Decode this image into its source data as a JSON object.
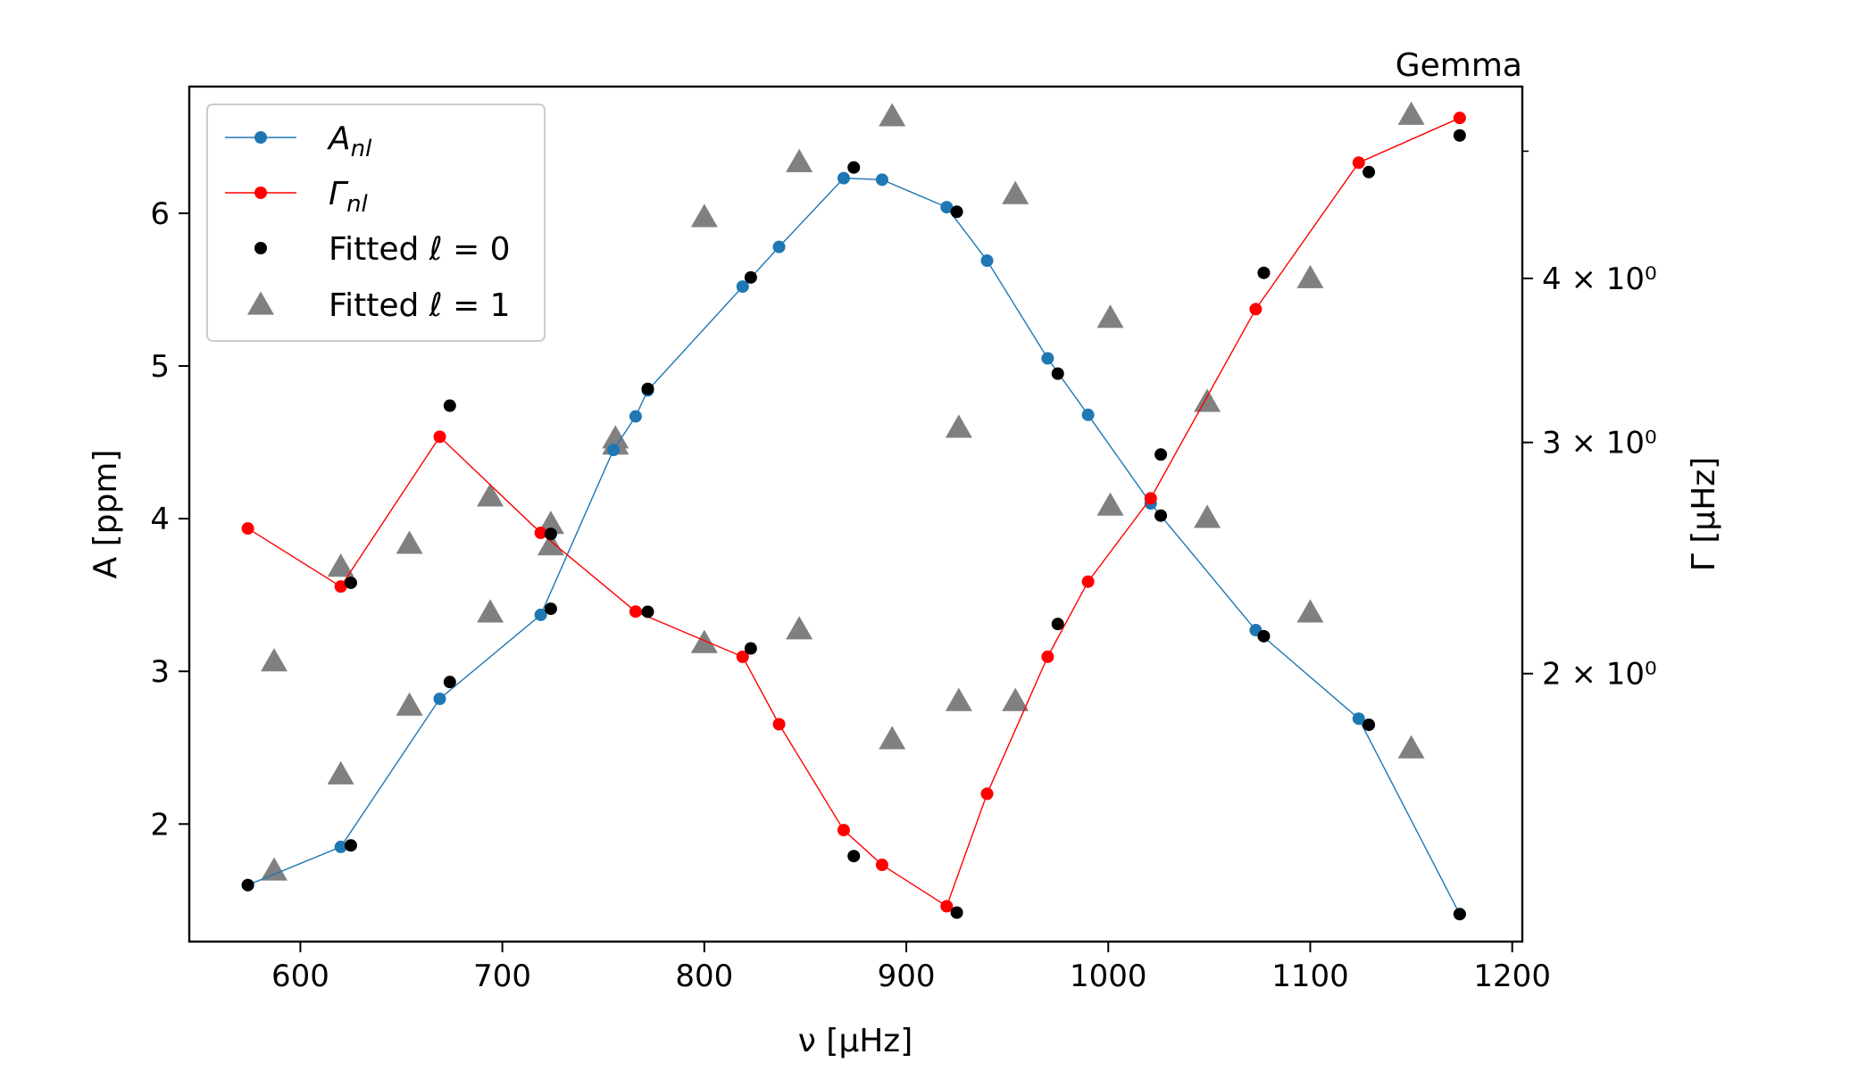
{
  "chart_data": {
    "type": "line",
    "title_right": "Gemma",
    "xlabel": "ν [μHz]",
    "ylabel_left": "A [ppm]",
    "ylabel_right": "Γ [μHz]",
    "xlim": [
      545,
      1205
    ],
    "ylim_left": [
      1.23,
      6.83
    ],
    "ylim_right_log": [
      1.25,
      5.6
    ],
    "right_axis_scale": "log",
    "x_ticks": [
      600,
      700,
      800,
      900,
      1000,
      1100,
      1200
    ],
    "x_tick_labels": [
      "600",
      "700",
      "800",
      "900",
      "1000",
      "1100",
      "1200"
    ],
    "y_left_ticks": [
      2,
      3,
      4,
      5,
      6
    ],
    "y_left_tick_labels": [
      "2",
      "3",
      "4",
      "5",
      "6"
    ],
    "y_right_ticks": [
      2,
      3,
      4
    ],
    "y_right_tick_labels": [
      "2 × 10⁰",
      "3 × 10⁰",
      "4 × 10⁰"
    ],
    "y_right_minor_ticks": [
      5
    ],
    "grid": false,
    "legend_position": "top-left",
    "legend": [
      {
        "label": "A",
        "sub": "nl",
        "marker": "line-dot",
        "color": "#1f77b4"
      },
      {
        "label": "Γ",
        "sub": "nl",
        "marker": "line-dot",
        "color": "#ff0000"
      },
      {
        "label": "Fitted ℓ = 0",
        "marker": "dot",
        "color": "#000000"
      },
      {
        "label": "Fitted ℓ = 1",
        "marker": "triangle",
        "color": "#808080"
      }
    ],
    "series": [
      {
        "name": "A_nl",
        "axis": "left",
        "color": "#1f77b4",
        "x": [
          574,
          620,
          669,
          719,
          755,
          766,
          772,
          819,
          837,
          869,
          888,
          920,
          940,
          970,
          990,
          1021,
          1073,
          1124,
          1174
        ],
        "y": [
          1.6,
          1.85,
          2.82,
          3.37,
          4.45,
          4.67,
          4.84,
          5.52,
          5.78,
          6.23,
          6.22,
          6.04,
          5.69,
          5.05,
          4.68,
          4.1,
          3.27,
          2.69,
          1.41
        ]
      },
      {
        "name": "Γ_nl",
        "axis": "right",
        "color": "#ff0000",
        "x": [
          574,
          620,
          669,
          719,
          766,
          819,
          837,
          869,
          888,
          920,
          940,
          970,
          990,
          1021,
          1073,
          1124,
          1174
        ],
        "y": [
          2.58,
          2.33,
          3.03,
          2.56,
          2.23,
          2.06,
          1.83,
          1.52,
          1.43,
          1.33,
          1.62,
          2.06,
          2.35,
          2.72,
          3.79,
          4.9,
          5.3
        ]
      },
      {
        "name": "Fitted ℓ = 0",
        "axis": "left",
        "color": "#000000",
        "x": [
          574,
          625,
          674,
          724,
          724,
          772,
          772,
          823,
          823,
          874,
          874,
          925,
          925,
          975,
          975,
          1026,
          1026,
          1077,
          1077,
          1129,
          1129,
          1174,
          1174,
          674,
          625
        ],
        "y": [
          1.6,
          1.86,
          2.93,
          3.41,
          3.9,
          4.85,
          3.39,
          5.58,
          3.15,
          6.3,
          1.79,
          6.01,
          1.42,
          4.95,
          3.31,
          4.02,
          4.42,
          3.23,
          5.61,
          2.65,
          6.27,
          1.41,
          6.51,
          4.74,
          3.58
        ]
      },
      {
        "name": "Fitted ℓ = 1",
        "axis": "left",
        "color": "#808080",
        "x": [
          587,
          620,
          620,
          654,
          654,
          694,
          694,
          724,
          724,
          756,
          756,
          800,
          800,
          847,
          847,
          893,
          893,
          926,
          926,
          954,
          954,
          1001,
          1001,
          1049,
          1049,
          1100,
          1100,
          1150,
          1150
        ],
        "y": [
          1.68,
          3.67,
          2.31,
          2.76,
          3.82,
          4.13,
          3.37,
          3.95,
          3.81,
          4.47,
          4.51,
          3.17,
          5.96,
          6.32,
          3.26,
          6.62,
          2.54,
          4.58,
          2.79,
          6.11,
          2.79,
          5.3,
          4.07,
          4.75,
          3.99,
          5.56,
          3.37,
          6.63,
          2.48
        ]
      }
    ],
    "l1_extra_left": {
      "x": [
        587
      ],
      "y": [
        3.05
      ]
    }
  }
}
